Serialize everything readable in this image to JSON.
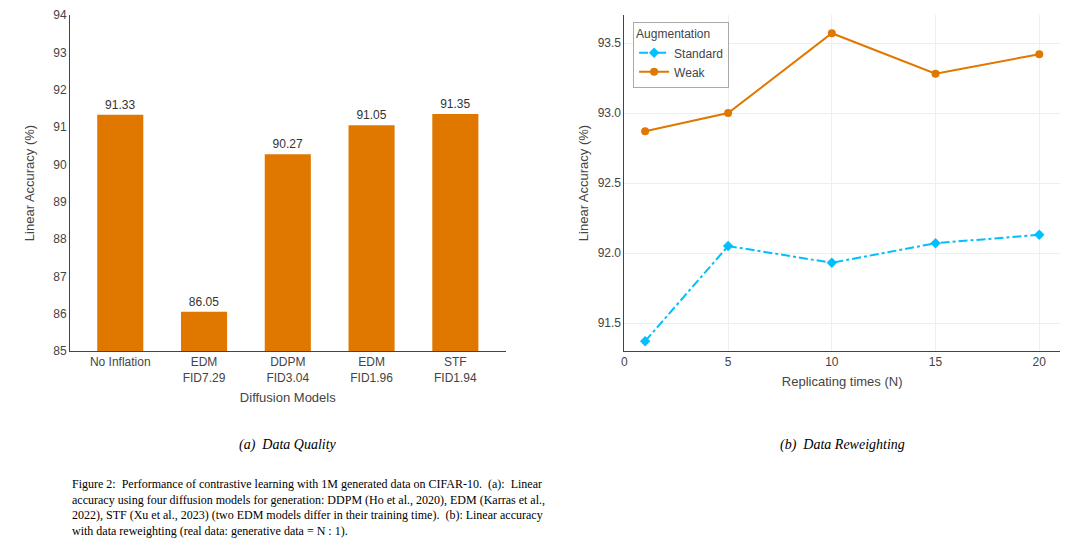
{
  "chart_data": [
    {
      "type": "bar",
      "subtitle": "(a)  Data Quality",
      "categories": [
        "No Inflation",
        "EDM\nFID7.29",
        "DDPM\nFID3.04",
        "EDM\nFID1.96",
        "STF\nFID1.94"
      ],
      "values": [
        91.33,
        86.05,
        90.27,
        91.05,
        91.35
      ],
      "color": "#E07800",
      "xlabel": "Diffusion Models",
      "ylabel": "Linear Accuracy (%)",
      "ylim": [
        85,
        94
      ],
      "yticks": [
        85,
        86,
        87,
        88,
        89,
        90,
        91,
        92,
        93,
        94
      ],
      "data_labels": true,
      "grid": false
    },
    {
      "type": "line",
      "subtitle": "(b)  Data Reweighting",
      "x": [
        1,
        5,
        10,
        15,
        20
      ],
      "series": [
        {
          "name": "Standard",
          "color": "#00BFFF",
          "values": [
            91.37,
            92.05,
            91.93,
            92.07,
            92.13
          ],
          "marker": "diamond",
          "line_style": "dashdot"
        },
        {
          "name": "Weak",
          "color": "#E07800",
          "values": [
            92.87,
            93.0,
            93.57,
            93.28,
            93.42
          ],
          "marker": "circle",
          "line_style": "solid"
        }
      ],
      "xlabel": "Replicating times (N)",
      "ylabel": "Linear Accuracy (%)",
      "xlim": [
        0,
        21
      ],
      "xticks": [
        0,
        5,
        10,
        15,
        20
      ],
      "ylim": [
        91.3,
        93.7
      ],
      "yticks": [
        {
          "value": 91.5,
          "label": "91.5"
        },
        {
          "value": 92,
          "label": "92.0"
        },
        {
          "value": 92.5,
          "label": "92.5"
        },
        {
          "value": 93,
          "label": "93.0"
        },
        {
          "value": 93.5,
          "label": "93.5"
        }
      ],
      "grid": true,
      "legend": "upper left",
      "legend_title": "Augmentation"
    }
  ],
  "annotations": [
    "Figure 2:  Performance of contrastive learning with 1M generated data on CIFAR-10.  (a):  Linear",
    "accuracy using four diffusion models for generation: DDPM (Ho et al., 2020), EDM (Karras et al.,",
    "2022), STF (Xu et al., 2023) (two EDM models differ in their training time).  (b): Linear accuracy",
    "with data reweighting (real data: generative data = N : 1)."
  ]
}
